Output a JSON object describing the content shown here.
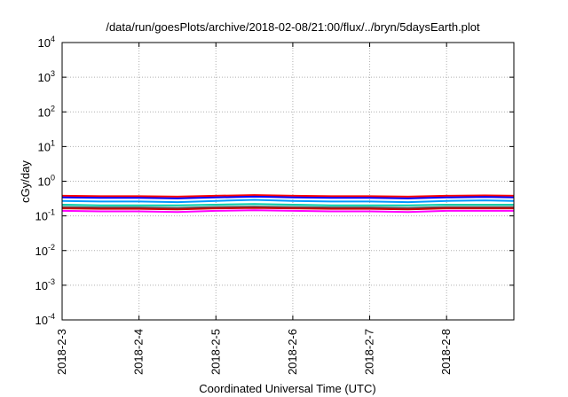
{
  "chart_data": {
    "type": "line",
    "title": "/data/run/goesPlots/archive/2018-02-08/21:00/flux/../bryn/5daysEarth.plot",
    "xlabel": "Coordinated Universal Time (UTC)",
    "ylabel": "cGy/day",
    "yscale": "log",
    "ylim": [
      0.0001,
      10000
    ],
    "xlim": [
      "2018-2-3",
      "2018-2-8 21:00"
    ],
    "grid": true,
    "x_ticks": [
      "2018-2-3",
      "2018-2-4",
      "2018-2-5",
      "2018-2-6",
      "2018-2-7",
      "2018-2-8"
    ],
    "y_ticks": [
      {
        "base": "10",
        "exp": "-4"
      },
      {
        "base": "10",
        "exp": "-3"
      },
      {
        "base": "10",
        "exp": "-2"
      },
      {
        "base": "10",
        "exp": "-1"
      },
      {
        "base": "10",
        "exp": "0"
      },
      {
        "base": "10",
        "exp": "1"
      },
      {
        "base": "10",
        "exp": "2"
      },
      {
        "base": "10",
        "exp": "3"
      },
      {
        "base": "10",
        "exp": "4"
      }
    ],
    "x": [
      "2018-2-3",
      "2018-2-3 12:00",
      "2018-2-4",
      "2018-2-4 12:00",
      "2018-2-5",
      "2018-2-5 12:00",
      "2018-2-6",
      "2018-2-6 12:00",
      "2018-2-7",
      "2018-2-7 12:00",
      "2018-2-8",
      "2018-2-8 12:00",
      "2018-2-8 21:00"
    ],
    "series": [
      {
        "color": "#ff0000",
        "values": [
          0.38,
          0.37,
          0.37,
          0.36,
          0.38,
          0.4,
          0.38,
          0.37,
          0.37,
          0.36,
          0.38,
          0.39,
          0.38
        ]
      },
      {
        "color": "#0000ff",
        "values": [
          0.34,
          0.33,
          0.33,
          0.32,
          0.34,
          0.36,
          0.34,
          0.33,
          0.33,
          0.32,
          0.34,
          0.35,
          0.34
        ]
      },
      {
        "color": "#0099ff",
        "values": [
          0.27,
          0.26,
          0.26,
          0.25,
          0.27,
          0.29,
          0.27,
          0.26,
          0.26,
          0.25,
          0.27,
          0.28,
          0.27
        ]
      },
      {
        "color": "#00ccaa",
        "values": [
          0.21,
          0.2,
          0.2,
          0.2,
          0.21,
          0.22,
          0.21,
          0.2,
          0.2,
          0.2,
          0.21,
          0.21,
          0.21
        ]
      },
      {
        "color": "#555555",
        "values": [
          0.18,
          0.175,
          0.175,
          0.17,
          0.18,
          0.185,
          0.18,
          0.175,
          0.175,
          0.17,
          0.18,
          0.18,
          0.18
        ]
      },
      {
        "color": "#cc0000",
        "values": [
          0.165,
          0.16,
          0.16,
          0.155,
          0.165,
          0.17,
          0.165,
          0.16,
          0.16,
          0.155,
          0.165,
          0.165,
          0.165
        ]
      },
      {
        "color": "#ff00ff",
        "values": [
          0.14,
          0.135,
          0.135,
          0.13,
          0.14,
          0.145,
          0.14,
          0.135,
          0.135,
          0.13,
          0.14,
          0.14,
          0.14
        ]
      }
    ]
  }
}
